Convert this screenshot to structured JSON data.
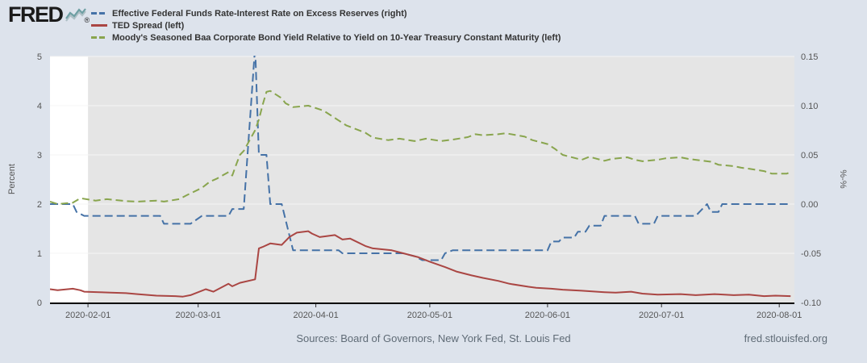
{
  "brand": {
    "logo_text": "FRED",
    "registered": "®"
  },
  "footer": {
    "sources": "Sources: Board of Governors, New York Fed, St. Louis Fed",
    "site": "fred.stlouisfed.org"
  },
  "chart_data": {
    "type": "line",
    "legend_position": "top",
    "plot": {
      "background": "#e5e5e5",
      "pre_period_background": "#ffffff",
      "gridline_color": "#f5f5f5",
      "page_background": "#dde3ec"
    },
    "left_axis": {
      "title": "Percent",
      "min": 0,
      "max": 5,
      "ticks": [
        {
          "v": 0,
          "label": "0"
        },
        {
          "v": 1,
          "label": "1"
        },
        {
          "v": 2,
          "label": "2"
        },
        {
          "v": 3,
          "label": "3"
        },
        {
          "v": 4,
          "label": "4"
        },
        {
          "v": 5,
          "label": "5"
        }
      ]
    },
    "right_axis": {
      "title": "%-%",
      "min": -0.1,
      "max": 0.15,
      "ticks": [
        {
          "v": -0.1,
          "label": "-0.10"
        },
        {
          "v": -0.05,
          "label": "-0.05"
        },
        {
          "v": 0.0,
          "label": "0.00"
        },
        {
          "v": 0.05,
          "label": "0.05"
        },
        {
          "v": 0.1,
          "label": "0.10"
        },
        {
          "v": 0.15,
          "label": "0.15"
        }
      ]
    },
    "x_axis": {
      "start": "2020-01-22",
      "end": "2020-08-05",
      "shaded_from": "2020-02-01",
      "ticks": [
        {
          "date": "2020-02-01",
          "label": "2020-02-01"
        },
        {
          "date": "2020-03-01",
          "label": "2020-03-01"
        },
        {
          "date": "2020-04-01",
          "label": "2020-04-01"
        },
        {
          "date": "2020-05-01",
          "label": "2020-05-01"
        },
        {
          "date": "2020-06-01",
          "label": "2020-06-01"
        },
        {
          "date": "2020-07-01",
          "label": "2020-07-01"
        },
        {
          "date": "2020-08-01",
          "label": "2020-08-01"
        }
      ]
    },
    "series": [
      {
        "id": "effr-minus-ioer",
        "label": "Effective Federal Funds Rate-Interest Rate on Excess Reserves (right)",
        "axis": "right",
        "color": "#4572a7",
        "dash": "10,5",
        "points": [
          [
            "2020-01-22",
            0.0
          ],
          [
            "2020-01-28",
            0.0
          ],
          [
            "2020-01-29",
            -0.008
          ],
          [
            "2020-01-31",
            -0.012
          ],
          [
            "2020-02-20",
            -0.012
          ],
          [
            "2020-02-21",
            -0.02
          ],
          [
            "2020-02-28",
            -0.02
          ],
          [
            "2020-03-02",
            -0.012
          ],
          [
            "2020-03-09",
            -0.012
          ],
          [
            "2020-03-10",
            -0.005
          ],
          [
            "2020-03-13",
            -0.005
          ],
          [
            "2020-03-16",
            0.16
          ],
          [
            "2020-03-17",
            0.05
          ],
          [
            "2020-03-19",
            0.05
          ],
          [
            "2020-03-20",
            0.0
          ],
          [
            "2020-03-23",
            0.0
          ],
          [
            "2020-03-26",
            -0.047
          ],
          [
            "2020-04-07",
            -0.047
          ],
          [
            "2020-04-08",
            -0.05
          ],
          [
            "2020-04-24",
            -0.05
          ],
          [
            "2020-04-27",
            -0.053
          ],
          [
            "2020-04-29",
            -0.057
          ],
          [
            "2020-05-04",
            -0.057
          ],
          [
            "2020-05-05",
            -0.05
          ],
          [
            "2020-05-07",
            -0.047
          ],
          [
            "2020-06-01",
            -0.047
          ],
          [
            "2020-06-02",
            -0.038
          ],
          [
            "2020-06-04",
            -0.038
          ],
          [
            "2020-06-05",
            -0.034
          ],
          [
            "2020-06-08",
            -0.034
          ],
          [
            "2020-06-09",
            -0.028
          ],
          [
            "2020-06-11",
            -0.028
          ],
          [
            "2020-06-12",
            -0.022
          ],
          [
            "2020-06-15",
            -0.022
          ],
          [
            "2020-06-16",
            -0.012
          ],
          [
            "2020-06-24",
            -0.012
          ],
          [
            "2020-06-25",
            -0.02
          ],
          [
            "2020-06-29",
            -0.02
          ],
          [
            "2020-06-30",
            -0.012
          ],
          [
            "2020-07-10",
            -0.012
          ],
          [
            "2020-07-13",
            0.0
          ],
          [
            "2020-07-14",
            -0.008
          ],
          [
            "2020-07-16",
            -0.008
          ],
          [
            "2020-07-17",
            0.0
          ],
          [
            "2020-08-04",
            0.0
          ]
        ]
      },
      {
        "id": "ted-spread",
        "label": "TED Spread (left)",
        "axis": "left",
        "color": "#aa4643",
        "dash": "",
        "points": [
          [
            "2020-01-22",
            0.27
          ],
          [
            "2020-01-24",
            0.25
          ],
          [
            "2020-01-28",
            0.28
          ],
          [
            "2020-01-30",
            0.25
          ],
          [
            "2020-01-31",
            0.22
          ],
          [
            "2020-02-04",
            0.21
          ],
          [
            "2020-02-07",
            0.2
          ],
          [
            "2020-02-11",
            0.19
          ],
          [
            "2020-02-14",
            0.17
          ],
          [
            "2020-02-19",
            0.14
          ],
          [
            "2020-02-24",
            0.13
          ],
          [
            "2020-02-26",
            0.12
          ],
          [
            "2020-02-28",
            0.15
          ],
          [
            "2020-03-03",
            0.27
          ],
          [
            "2020-03-05",
            0.22
          ],
          [
            "2020-03-09",
            0.38
          ],
          [
            "2020-03-10",
            0.33
          ],
          [
            "2020-03-12",
            0.4
          ],
          [
            "2020-03-16",
            0.47
          ],
          [
            "2020-03-17",
            1.1
          ],
          [
            "2020-03-18",
            1.13
          ],
          [
            "2020-03-20",
            1.2
          ],
          [
            "2020-03-23",
            1.17
          ],
          [
            "2020-03-25",
            1.33
          ],
          [
            "2020-03-27",
            1.42
          ],
          [
            "2020-03-30",
            1.45
          ],
          [
            "2020-03-31",
            1.4
          ],
          [
            "2020-04-02",
            1.33
          ],
          [
            "2020-04-06",
            1.37
          ],
          [
            "2020-04-08",
            1.28
          ],
          [
            "2020-04-10",
            1.3
          ],
          [
            "2020-04-14",
            1.15
          ],
          [
            "2020-04-16",
            1.1
          ],
          [
            "2020-04-21",
            1.06
          ],
          [
            "2020-04-24",
            1.0
          ],
          [
            "2020-04-28",
            0.92
          ],
          [
            "2020-05-01",
            0.83
          ],
          [
            "2020-05-05",
            0.72
          ],
          [
            "2020-05-08",
            0.63
          ],
          [
            "2020-05-12",
            0.55
          ],
          [
            "2020-05-15",
            0.5
          ],
          [
            "2020-05-19",
            0.44
          ],
          [
            "2020-05-22",
            0.38
          ],
          [
            "2020-05-27",
            0.32
          ],
          [
            "2020-05-29",
            0.3
          ],
          [
            "2020-06-02",
            0.28
          ],
          [
            "2020-06-05",
            0.26
          ],
          [
            "2020-06-10",
            0.24
          ],
          [
            "2020-06-16",
            0.21
          ],
          [
            "2020-06-19",
            0.2
          ],
          [
            "2020-06-23",
            0.22
          ],
          [
            "2020-06-26",
            0.18
          ],
          [
            "2020-06-30",
            0.16
          ],
          [
            "2020-07-06",
            0.17
          ],
          [
            "2020-07-10",
            0.15
          ],
          [
            "2020-07-15",
            0.17
          ],
          [
            "2020-07-20",
            0.15
          ],
          [
            "2020-07-24",
            0.16
          ],
          [
            "2020-07-28",
            0.13
          ],
          [
            "2020-07-31",
            0.14
          ],
          [
            "2020-08-04",
            0.13
          ]
        ]
      },
      {
        "id": "baa-minus-10y-treasury",
        "label": "Moody's Seasoned Baa Corporate Bond Yield Relative to Yield on 10-Year Treasury Constant Maturity (left)",
        "axis": "left",
        "color": "#89a54e",
        "dash": "9,5",
        "points": [
          [
            "2020-01-22",
            2.05
          ],
          [
            "2020-01-24",
            2.0
          ],
          [
            "2020-01-28",
            2.03
          ],
          [
            "2020-01-30",
            2.12
          ],
          [
            "2020-02-03",
            2.07
          ],
          [
            "2020-02-06",
            2.1
          ],
          [
            "2020-02-11",
            2.06
          ],
          [
            "2020-02-14",
            2.05
          ],
          [
            "2020-02-19",
            2.07
          ],
          [
            "2020-02-21",
            2.05
          ],
          [
            "2020-02-25",
            2.1
          ],
          [
            "2020-02-27",
            2.18
          ],
          [
            "2020-03-02",
            2.33
          ],
          [
            "2020-03-04",
            2.45
          ],
          [
            "2020-03-06",
            2.52
          ],
          [
            "2020-03-09",
            2.65
          ],
          [
            "2020-03-10",
            2.58
          ],
          [
            "2020-03-11",
            2.8
          ],
          [
            "2020-03-12",
            3.0
          ],
          [
            "2020-03-13",
            3.08
          ],
          [
            "2020-03-16",
            3.5
          ],
          [
            "2020-03-17",
            3.72
          ],
          [
            "2020-03-18",
            4.02
          ],
          [
            "2020-03-19",
            4.28
          ],
          [
            "2020-03-20",
            4.3
          ],
          [
            "2020-03-23",
            4.15
          ],
          [
            "2020-03-24",
            4.05
          ],
          [
            "2020-03-26",
            3.97
          ],
          [
            "2020-03-30",
            4.0
          ],
          [
            "2020-04-01",
            3.95
          ],
          [
            "2020-04-03",
            3.9
          ],
          [
            "2020-04-07",
            3.7
          ],
          [
            "2020-04-09",
            3.6
          ],
          [
            "2020-04-14",
            3.45
          ],
          [
            "2020-04-16",
            3.35
          ],
          [
            "2020-04-20",
            3.3
          ],
          [
            "2020-04-23",
            3.33
          ],
          [
            "2020-04-27",
            3.28
          ],
          [
            "2020-04-30",
            3.33
          ],
          [
            "2020-05-04",
            3.28
          ],
          [
            "2020-05-07",
            3.31
          ],
          [
            "2020-05-11",
            3.36
          ],
          [
            "2020-05-13",
            3.42
          ],
          [
            "2020-05-15",
            3.4
          ],
          [
            "2020-05-19",
            3.42
          ],
          [
            "2020-05-21",
            3.44
          ],
          [
            "2020-05-26",
            3.37
          ],
          [
            "2020-05-28",
            3.3
          ],
          [
            "2020-06-01",
            3.22
          ],
          [
            "2020-06-03",
            3.12
          ],
          [
            "2020-06-05",
            3.0
          ],
          [
            "2020-06-08",
            2.94
          ],
          [
            "2020-06-10",
            2.9
          ],
          [
            "2020-06-12",
            2.96
          ],
          [
            "2020-06-16",
            2.88
          ],
          [
            "2020-06-18",
            2.92
          ],
          [
            "2020-06-22",
            2.95
          ],
          [
            "2020-06-24",
            2.9
          ],
          [
            "2020-06-26",
            2.87
          ],
          [
            "2020-06-30",
            2.9
          ],
          [
            "2020-07-02",
            2.93
          ],
          [
            "2020-07-06",
            2.95
          ],
          [
            "2020-07-08",
            2.92
          ],
          [
            "2020-07-10",
            2.9
          ],
          [
            "2020-07-14",
            2.86
          ],
          [
            "2020-07-16",
            2.8
          ],
          [
            "2020-07-20",
            2.77
          ],
          [
            "2020-07-22",
            2.74
          ],
          [
            "2020-07-24",
            2.72
          ],
          [
            "2020-07-28",
            2.67
          ],
          [
            "2020-07-30",
            2.62
          ],
          [
            "2020-08-03",
            2.62
          ],
          [
            "2020-08-04",
            2.65
          ]
        ]
      }
    ]
  }
}
